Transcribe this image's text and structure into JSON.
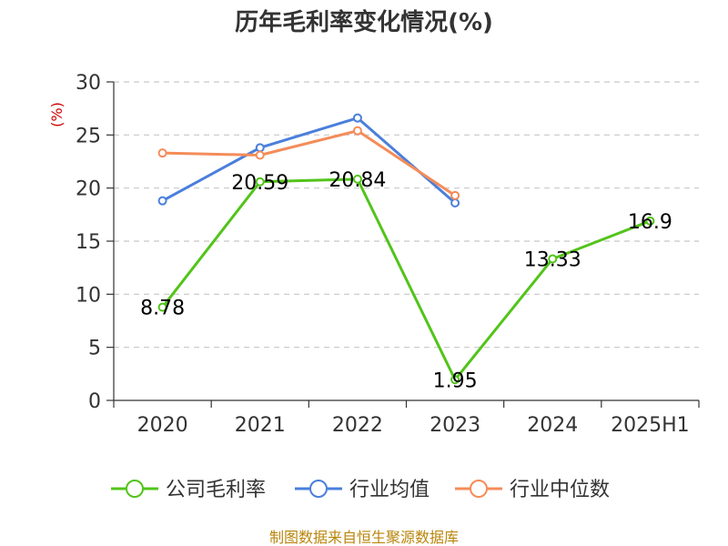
{
  "chart_data": {
    "type": "line",
    "title": "历年毛利率变化情况(%)",
    "ylabel": "(%)",
    "categories": [
      "2020",
      "2021",
      "2022",
      "2023",
      "2024",
      "2025H1"
    ],
    "ylim": [
      0,
      30
    ],
    "yticks": [
      0,
      5,
      10,
      15,
      20,
      25,
      30
    ],
    "grid": true,
    "legend_position": "bottom",
    "series": [
      {
        "name": "公司毛利率",
        "color": "#52c41a",
        "values": [
          8.78,
          20.59,
          20.84,
          1.95,
          13.33,
          16.9
        ],
        "labels": [
          "8.78",
          "20.59",
          "20.84",
          "1.95",
          "13.33",
          "16.9"
        ]
      },
      {
        "name": "行业均值",
        "color": "#4a7fdc",
        "values": [
          18.8,
          23.8,
          26.6,
          18.6,
          null,
          null
        ]
      },
      {
        "name": "行业中位数",
        "color": "#f48c5a",
        "values": [
          23.3,
          23.1,
          25.4,
          19.3,
          null,
          null
        ]
      }
    ]
  },
  "source": "制图数据来自恒生聚源数据库"
}
